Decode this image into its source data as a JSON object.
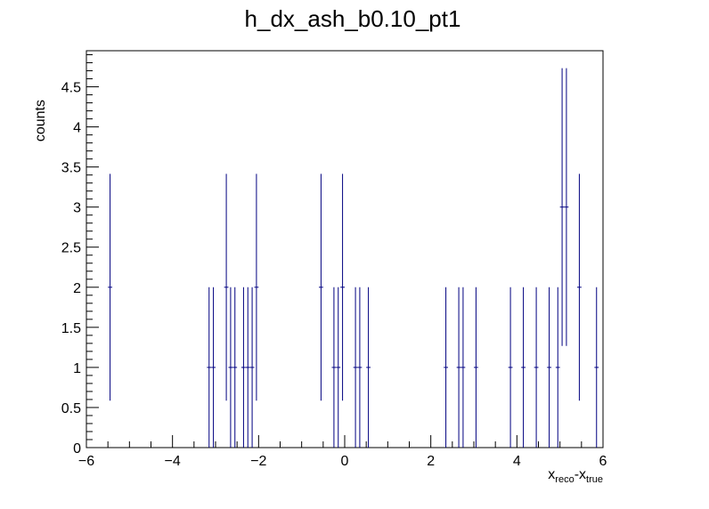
{
  "chart_data": {
    "type": "histogram",
    "title": "h_dx_ash_b0.10_pt1",
    "ylabel": "counts",
    "xlabel_parts": {
      "base1": "x",
      "sub1": "reco",
      "sep": "-",
      "base2": "x",
      "sub2": "true"
    },
    "xlim": [
      -6,
      6
    ],
    "ylim": [
      0,
      4.95
    ],
    "xticks": [
      -6,
      -4,
      -2,
      0,
      2,
      4,
      6
    ],
    "xtick_labels": [
      "−6",
      "−4",
      "−2",
      "0",
      "2",
      "4",
      "6"
    ],
    "yticks": [
      0,
      0.5,
      1,
      1.5,
      2,
      2.5,
      3,
      3.5,
      4,
      4.5
    ],
    "ytick_labels": [
      "0",
      "0.5",
      "1",
      "1.5",
      "2",
      "2.5",
      "3",
      "3.5",
      "4",
      "4.5"
    ],
    "bin_width": 0.1,
    "grid": false,
    "colors": {
      "marker": "#000080",
      "axis": "#000000"
    },
    "points": [
      {
        "x": -5.45,
        "y": 2,
        "err": 1.414
      },
      {
        "x": -3.15,
        "y": 1,
        "err": 1
      },
      {
        "x": -3.05,
        "y": 1,
        "err": 1
      },
      {
        "x": -2.75,
        "y": 2,
        "err": 1.414
      },
      {
        "x": -2.65,
        "y": 1,
        "err": 1
      },
      {
        "x": -2.55,
        "y": 1,
        "err": 1
      },
      {
        "x": -2.35,
        "y": 1,
        "err": 1
      },
      {
        "x": -2.25,
        "y": 1,
        "err": 1
      },
      {
        "x": -2.15,
        "y": 1,
        "err": 1
      },
      {
        "x": -2.05,
        "y": 2,
        "err": 1.414
      },
      {
        "x": -0.55,
        "y": 2,
        "err": 1.414
      },
      {
        "x": -0.25,
        "y": 1,
        "err": 1
      },
      {
        "x": -0.15,
        "y": 1,
        "err": 1
      },
      {
        "x": -0.05,
        "y": 2,
        "err": 1.414
      },
      {
        "x": 0.25,
        "y": 1,
        "err": 1
      },
      {
        "x": 0.35,
        "y": 1,
        "err": 1
      },
      {
        "x": 0.55,
        "y": 1,
        "err": 1
      },
      {
        "x": 2.35,
        "y": 1,
        "err": 1
      },
      {
        "x": 2.65,
        "y": 1,
        "err": 1
      },
      {
        "x": 2.75,
        "y": 1,
        "err": 1
      },
      {
        "x": 3.05,
        "y": 1,
        "err": 1
      },
      {
        "x": 3.85,
        "y": 1,
        "err": 1
      },
      {
        "x": 4.15,
        "y": 1,
        "err": 1
      },
      {
        "x": 4.45,
        "y": 1,
        "err": 1
      },
      {
        "x": 4.75,
        "y": 1,
        "err": 1
      },
      {
        "x": 4.95,
        "y": 1,
        "err": 1
      },
      {
        "x": 5.05,
        "y": 3,
        "err": 1.732
      },
      {
        "x": 5.15,
        "y": 3,
        "err": 1.732
      },
      {
        "x": 5.45,
        "y": 2,
        "err": 1.414
      },
      {
        "x": 5.85,
        "y": 1,
        "err": 1
      }
    ]
  }
}
